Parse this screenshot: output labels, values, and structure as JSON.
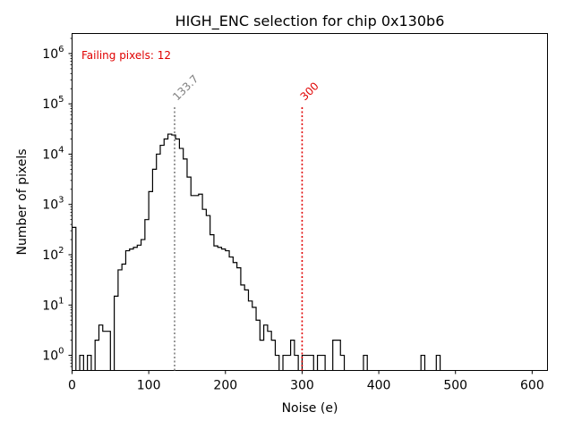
{
  "chart_data": {
    "type": "histogram",
    "title": "HIGH_ENC selection for chip 0x130b6",
    "xlabel": "Noise (e)",
    "ylabel": "Number of pixels",
    "xlim": [
      0,
      620
    ],
    "ylim": [
      0.5,
      2500000
    ],
    "yscale": "log",
    "grid": false,
    "legend": "none",
    "x_ticks": [
      0,
      100,
      200,
      300,
      400,
      500,
      600
    ],
    "y_ticks": [
      {
        "value": 1,
        "mantissa": "10",
        "exponent": "0"
      },
      {
        "value": 10,
        "mantissa": "10",
        "exponent": "1"
      },
      {
        "value": 100,
        "mantissa": "10",
        "exponent": "2"
      },
      {
        "value": 1000,
        "mantissa": "10",
        "exponent": "3"
      },
      {
        "value": 10000,
        "mantissa": "10",
        "exponent": "4"
      },
      {
        "value": 100000,
        "mantissa": "10",
        "exponent": "5"
      },
      {
        "value": 1000000,
        "mantissa": "10",
        "exponent": "6"
      }
    ],
    "annotation": "Failing pixels: 12",
    "bin_width": 5,
    "bins": [
      [
        0,
        350
      ],
      [
        5,
        0
      ],
      [
        10,
        1
      ],
      [
        15,
        0
      ],
      [
        20,
        1
      ],
      [
        25,
        0
      ],
      [
        30,
        2
      ],
      [
        35,
        4
      ],
      [
        40,
        3
      ],
      [
        45,
        3
      ],
      [
        50,
        0
      ],
      [
        55,
        15
      ],
      [
        60,
        50
      ],
      [
        65,
        65
      ],
      [
        70,
        120
      ],
      [
        75,
        130
      ],
      [
        80,
        140
      ],
      [
        85,
        155
      ],
      [
        90,
        200
      ],
      [
        95,
        500
      ],
      [
        100,
        1800
      ],
      [
        105,
        5000
      ],
      [
        110,
        10000
      ],
      [
        115,
        15000
      ],
      [
        120,
        20000
      ],
      [
        125,
        25000
      ],
      [
        130,
        24000
      ],
      [
        135,
        20000
      ],
      [
        140,
        13000
      ],
      [
        145,
        8000
      ],
      [
        150,
        3500
      ],
      [
        155,
        1500
      ],
      [
        160,
        1500
      ],
      [
        165,
        1600
      ],
      [
        170,
        800
      ],
      [
        175,
        600
      ],
      [
        180,
        250
      ],
      [
        185,
        150
      ],
      [
        190,
        140
      ],
      [
        195,
        130
      ],
      [
        200,
        120
      ],
      [
        205,
        90
      ],
      [
        210,
        70
      ],
      [
        215,
        55
      ],
      [
        220,
        25
      ],
      [
        225,
        20
      ],
      [
        230,
        12
      ],
      [
        235,
        9
      ],
      [
        240,
        5
      ],
      [
        245,
        2
      ],
      [
        250,
        4
      ],
      [
        255,
        3
      ],
      [
        260,
        2
      ],
      [
        265,
        1
      ],
      [
        270,
        0
      ],
      [
        275,
        1
      ],
      [
        280,
        1
      ],
      [
        285,
        2
      ],
      [
        290,
        1
      ],
      [
        295,
        0
      ],
      [
        300,
        1
      ],
      [
        305,
        1
      ],
      [
        310,
        1
      ],
      [
        315,
        0
      ],
      [
        320,
        1
      ],
      [
        325,
        1
      ],
      [
        330,
        0
      ],
      [
        335,
        0
      ],
      [
        340,
        2
      ],
      [
        345,
        2
      ],
      [
        350,
        1
      ],
      [
        355,
        0
      ],
      [
        360,
        0
      ],
      [
        365,
        0
      ],
      [
        370,
        0
      ],
      [
        375,
        0
      ],
      [
        380,
        1
      ],
      [
        385,
        0
      ],
      [
        455,
        1
      ],
      [
        460,
        0
      ],
      [
        475,
        1
      ],
      [
        480,
        0
      ]
    ],
    "lines": [
      {
        "x": 133.7,
        "label": "133.7",
        "color": "#808080"
      },
      {
        "x": 300,
        "label": "300",
        "color": "#e00000"
      }
    ]
  }
}
